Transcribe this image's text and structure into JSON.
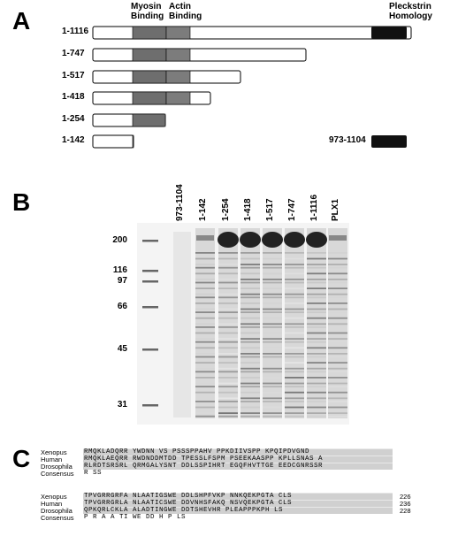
{
  "panel_a": {
    "label": "A",
    "domains": [
      "Myosin Binding",
      "Actin Binding",
      "Pleckstrin Homology"
    ],
    "constructs": [
      "1-1116",
      "1-747",
      "1-517",
      "1-418",
      "1-254",
      "1-142"
    ],
    "fragment": "973-1104"
  },
  "panel_b": {
    "label": "B",
    "lanes": [
      "973-1104",
      "1-142",
      "1-254",
      "1-418",
      "1-517",
      "1-747",
      "1-1116",
      "PLX1"
    ],
    "markers": [
      "200",
      "116",
      "97",
      "66",
      "45",
      "31"
    ]
  },
  "panel_c": {
    "label": "C",
    "blocks": [
      {
        "rows": [
          {
            "species": "Xenopus",
            "sequence": "RMQKLADQRR YWDNN VS  PSSSPPAHV PPKDIIVSPP KPQIPDVGND"
          },
          {
            "species": "Human",
            "sequence": "RMQKLAEQRR RWDNDDMTDD TPESSLFSPM PSEEKAASPP KPLLSNAS A"
          },
          {
            "species": "Drosophila",
            "sequence": "RLRDTSRSRL QRMGALYSNT DDLSSPIHRT EGQFHVTTGE EEDCGNRSSR"
          },
          {
            "species": "Consensus",
            "sequence": "R                        SS"
          }
        ]
      },
      {
        "rows": [
          {
            "species": "Xenopus",
            "sequence": "TPVGRRGRFA NLAATIGSWE DDLSHPFVKP NNKQEKPGTA CLS",
            "end": "226"
          },
          {
            "species": "Human",
            "sequence": "TPVGRRGRLA NLAATICSWE DDVNHSFAKQ NSVQEKPGTA CLS",
            "end": "236"
          },
          {
            "species": "Drosophila",
            "sequence": "QPKQRLCKLA ALADTINGWE DDTSHEVHR  PLEAPPPKPH LS",
            "end": "228"
          },
          {
            "species": "Consensus",
            "sequence": "P  R     A   A TI  WE DD  H               P   LS"
          }
        ]
      }
    ]
  }
}
